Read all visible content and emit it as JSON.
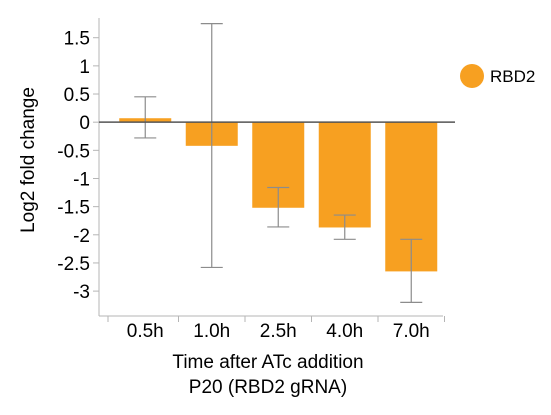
{
  "chart_data": {
    "type": "bar",
    "categories": [
      "0.5h",
      "1.0h",
      "2.5h",
      "4.0h",
      "7.0h"
    ],
    "series": [
      {
        "name": "RBD2",
        "values": [
          0.07,
          -0.42,
          -1.52,
          -1.87,
          -2.65
        ],
        "error_low": [
          -0.28,
          -2.58,
          -1.86,
          -2.08,
          -3.2
        ],
        "error_high": [
          0.45,
          1.75,
          -1.16,
          -1.65,
          -2.08
        ]
      }
    ],
    "ylim": [
      -3.3,
      1.85
    ],
    "yticks": [
      "1.5",
      "1",
      "0.5",
      "0",
      "-0.5",
      "-1",
      "-1.5",
      "-2",
      "-2.5",
      "-3"
    ],
    "ylabel": "Log2 fold change",
    "xlabel_line1": "Time after ATc addition",
    "xlabel_line2": "P20 (RBD2 gRNA)",
    "legend_position": "right",
    "grid": false,
    "colors": {
      "bar": "#F7A021",
      "error_bar": "#8c8c8c",
      "axis": "#b5b5b5",
      "zero_line": "#555555"
    }
  }
}
